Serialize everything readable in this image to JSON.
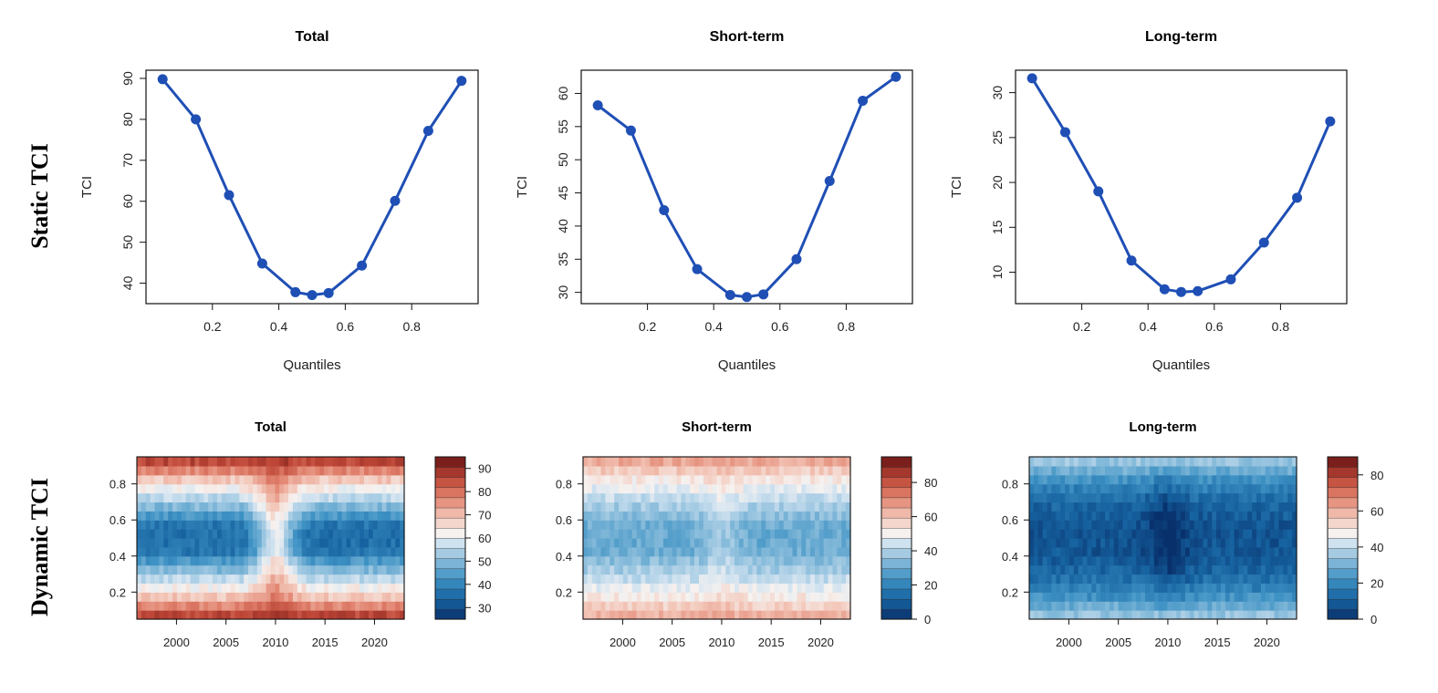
{
  "row_labels": {
    "static": "Static TCI",
    "dynamic": "Dynamic TCI"
  },
  "chart_data": [
    {
      "type": "line",
      "panel": "static-total",
      "title": "Total",
      "xlabel": "Quantiles",
      "ylabel": "TCI",
      "x": [
        0.05,
        0.15,
        0.25,
        0.35,
        0.45,
        0.5,
        0.55,
        0.65,
        0.75,
        0.85,
        0.95
      ],
      "values": [
        89.8,
        80.0,
        61.5,
        44.8,
        37.8,
        37.1,
        37.6,
        44.3,
        60.1,
        77.2,
        89.4
      ],
      "xlim": [
        0.0,
        1.0
      ],
      "ylim": [
        35,
        92
      ],
      "xticks": [
        0.2,
        0.4,
        0.6,
        0.8
      ],
      "xtick_labels": [
        "0.2",
        "0.4",
        "0.6",
        "0.8"
      ],
      "yticks": [
        40,
        50,
        60,
        70,
        80,
        90
      ],
      "ytick_labels": [
        "40",
        "50",
        "60",
        "70",
        "80",
        "90"
      ],
      "color": "#1f4fb5"
    },
    {
      "type": "line",
      "panel": "static-short",
      "title": "Short-term",
      "xlabel": "Quantiles",
      "ylabel": "TCI",
      "x": [
        0.05,
        0.15,
        0.25,
        0.35,
        0.45,
        0.5,
        0.55,
        0.65,
        0.75,
        0.85,
        0.95
      ],
      "values": [
        58.2,
        54.4,
        42.4,
        33.5,
        29.6,
        29.3,
        29.7,
        35.0,
        46.8,
        58.9,
        62.5
      ],
      "xlim": [
        0.0,
        1.0
      ],
      "ylim": [
        28.3,
        63.5
      ],
      "xticks": [
        0.2,
        0.4,
        0.6,
        0.8
      ],
      "xtick_labels": [
        "0.2",
        "0.4",
        "0.6",
        "0.8"
      ],
      "yticks": [
        30,
        35,
        40,
        45,
        50,
        55,
        60
      ],
      "ytick_labels": [
        "30",
        "35",
        "40",
        "45",
        "50",
        "55",
        "60"
      ],
      "color": "#1f4fb5"
    },
    {
      "type": "line",
      "panel": "static-long",
      "title": "Long-term",
      "xlabel": "Quantiles",
      "ylabel": "TCI",
      "x": [
        0.05,
        0.15,
        0.25,
        0.35,
        0.45,
        0.5,
        0.55,
        0.65,
        0.75,
        0.85,
        0.95
      ],
      "values": [
        31.6,
        25.6,
        19.0,
        11.3,
        8.1,
        7.8,
        7.9,
        9.2,
        13.3,
        18.3,
        26.8
      ],
      "xlim": [
        0.0,
        1.0
      ],
      "ylim": [
        6.5,
        32.5
      ],
      "xticks": [
        0.2,
        0.4,
        0.6,
        0.8
      ],
      "xtick_labels": [
        "0.2",
        "0.4",
        "0.6",
        "0.8"
      ],
      "yticks": [
        10,
        15,
        20,
        25,
        30
      ],
      "ytick_labels": [
        "10",
        "15",
        "20",
        "25",
        "30"
      ],
      "color": "#1f4fb5"
    },
    {
      "type": "heatmap",
      "panel": "dynamic-total",
      "title": "Total",
      "x_range": [
        1996,
        2023
      ],
      "y_range": [
        0.05,
        0.95
      ],
      "xticks": [
        2000,
        2005,
        2010,
        2015,
        2020
      ],
      "xtick_labels": [
        "2000",
        "2005",
        "2010",
        "2015",
        "2020"
      ],
      "yticks": [
        0.2,
        0.4,
        0.6,
        0.8
      ],
      "ytick_labels": [
        "0.2",
        "0.4",
        "0.6",
        "0.8"
      ],
      "profile": [
        90,
        68,
        52,
        36,
        36,
        52,
        68,
        90
      ],
      "dip_center": 2010,
      "dip_amount": 0.45,
      "colorbar": {
        "min": 25,
        "max": 95,
        "ticks": [
          30,
          40,
          50,
          60,
          70,
          80,
          90
        ],
        "tick_labels": [
          "30",
          "40",
          "50",
          "60",
          "70",
          "80",
          "90"
        ]
      }
    },
    {
      "type": "heatmap",
      "panel": "dynamic-short",
      "title": "Short-term",
      "x_range": [
        1996,
        2023
      ],
      "y_range": [
        0.05,
        0.95
      ],
      "xticks": [
        2000,
        2005,
        2010,
        2015,
        2020
      ],
      "xtick_labels": [
        "2000",
        "2005",
        "2010",
        "2015",
        "2020"
      ],
      "yticks": [
        0.2,
        0.4,
        0.6,
        0.8
      ],
      "ytick_labels": [
        "0.2",
        "0.4",
        "0.6",
        "0.8"
      ],
      "profile": [
        66,
        52,
        40,
        30,
        30,
        40,
        52,
        68
      ],
      "dip_center": 2010,
      "dip_amount": 0.2,
      "colorbar": {
        "min": 0,
        "max": 95,
        "ticks": [
          0,
          20,
          40,
          60,
          80
        ],
        "tick_labels": [
          "0",
          "20",
          "40",
          "60",
          "80"
        ]
      }
    },
    {
      "type": "heatmap",
      "panel": "dynamic-long",
      "title": "Long-term",
      "x_range": [
        1996,
        2023
      ],
      "y_range": [
        0.05,
        0.95
      ],
      "xticks": [
        2000,
        2005,
        2010,
        2015,
        2020
      ],
      "xtick_labels": [
        "2000",
        "2005",
        "2010",
        "2015",
        "2020"
      ],
      "yticks": [
        0.2,
        0.4,
        0.6,
        0.8
      ],
      "ytick_labels": [
        "0.2",
        "0.4",
        "0.6",
        "0.8"
      ],
      "profile": [
        38,
        22,
        12,
        8,
        8,
        12,
        22,
        38
      ],
      "dip_center": 2010,
      "dip_amount": -0.3,
      "colorbar": {
        "min": 0,
        "max": 90,
        "ticks": [
          0,
          20,
          40,
          60,
          80
        ],
        "tick_labels": [
          "0",
          "20",
          "40",
          "60",
          "80"
        ]
      }
    }
  ]
}
